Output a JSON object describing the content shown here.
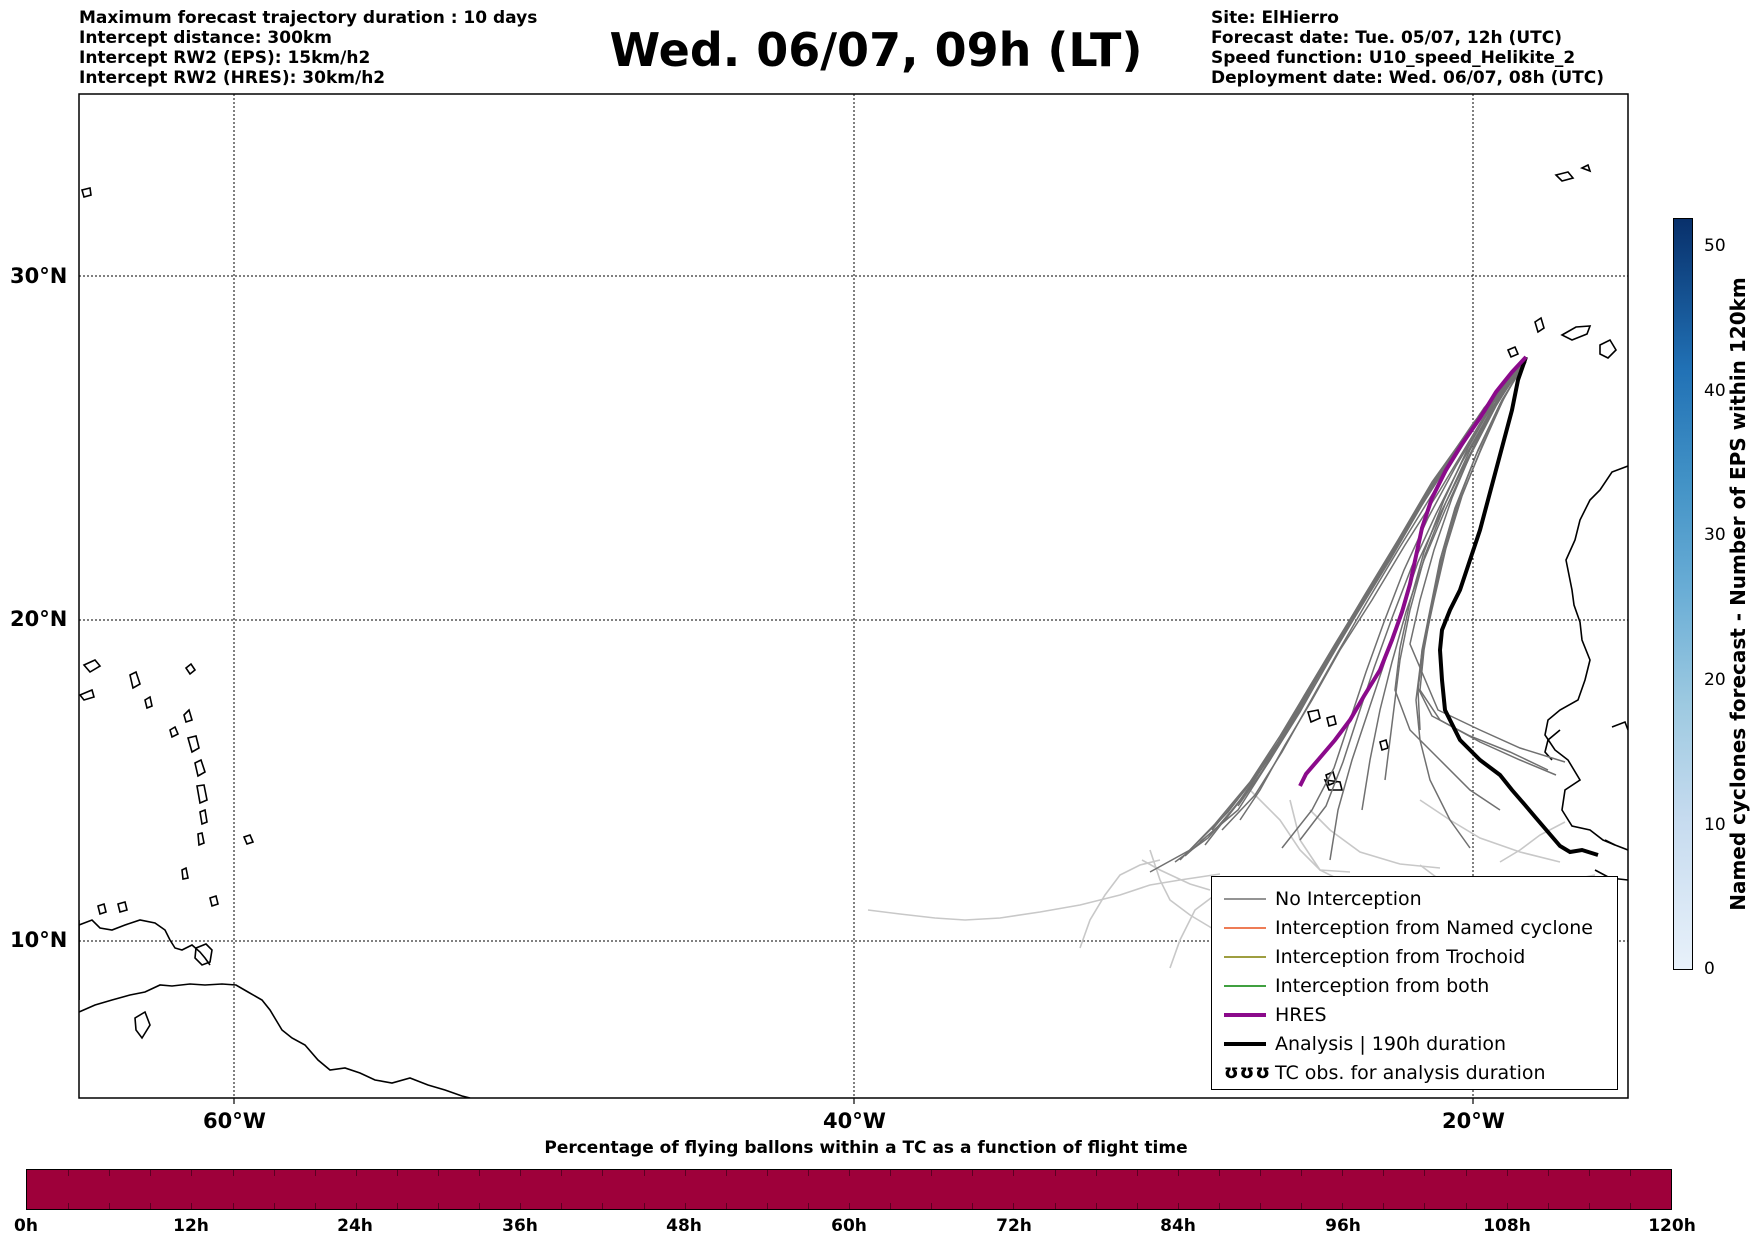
{
  "header_left": [
    "Maximum forecast trajectory duration : 10 days",
    "Intercept distance: 300km",
    "Intercept RW2 (EPS):  15km/h2",
    "Intercept RW2 (HRES): 30km/h2"
  ],
  "title": "Wed. 06/07, 09h (LT)",
  "header_right": [
    "Site: ElHierro",
    "Forecast date: Tue. 05/07, 12h (UTC)",
    "Speed function: U10_speed_Helikite_2",
    "Deployment date: Wed. 06/07, 08h (UTC)"
  ],
  "map": {
    "lat_labels": [
      "30°N",
      "20°N",
      "10°N"
    ],
    "lon_labels": [
      "60°W",
      "40°W",
      "20°W"
    ],
    "gridlines": true
  },
  "legend": {
    "position": "lower-right",
    "items": [
      {
        "label": "No Interception",
        "color": "#707070",
        "style": "thin-line"
      },
      {
        "label": "Interception from Named cyclone",
        "color": "#e8501e",
        "style": "thin-line"
      },
      {
        "label": "Interception from Trochoid",
        "color": "#7f7f00",
        "style": "thin-line"
      },
      {
        "label": "Interception from both",
        "color": "#008000",
        "style": "thin-line"
      },
      {
        "label": "HRES",
        "color": "#8b0a8b",
        "style": "thick-line"
      },
      {
        "label": "Analysis | 190h duration",
        "color": "#000000",
        "style": "thick-line"
      },
      {
        "label": "TC obs. for analysis duration",
        "color": "#000000",
        "style": "cyclone-symbols",
        "symbol": "ʊʊʊ"
      }
    ]
  },
  "colorbar_vertical": {
    "label": "Named cyclones forecast - Number of EPS within 120km",
    "ticks": [
      "50",
      "40",
      "30",
      "20",
      "10",
      "0"
    ],
    "range": [
      0,
      52
    ],
    "colormap": "Blues"
  },
  "colorbar_horizontal": {
    "title": "Percentage of flying ballons within a TC as a function of flight time",
    "ticks": [
      "0h",
      "12h",
      "24h",
      "36h",
      "48h",
      "60h",
      "72h",
      "84h",
      "96h",
      "108h",
      "120h"
    ],
    "fill_color": "#9e003a"
  }
}
